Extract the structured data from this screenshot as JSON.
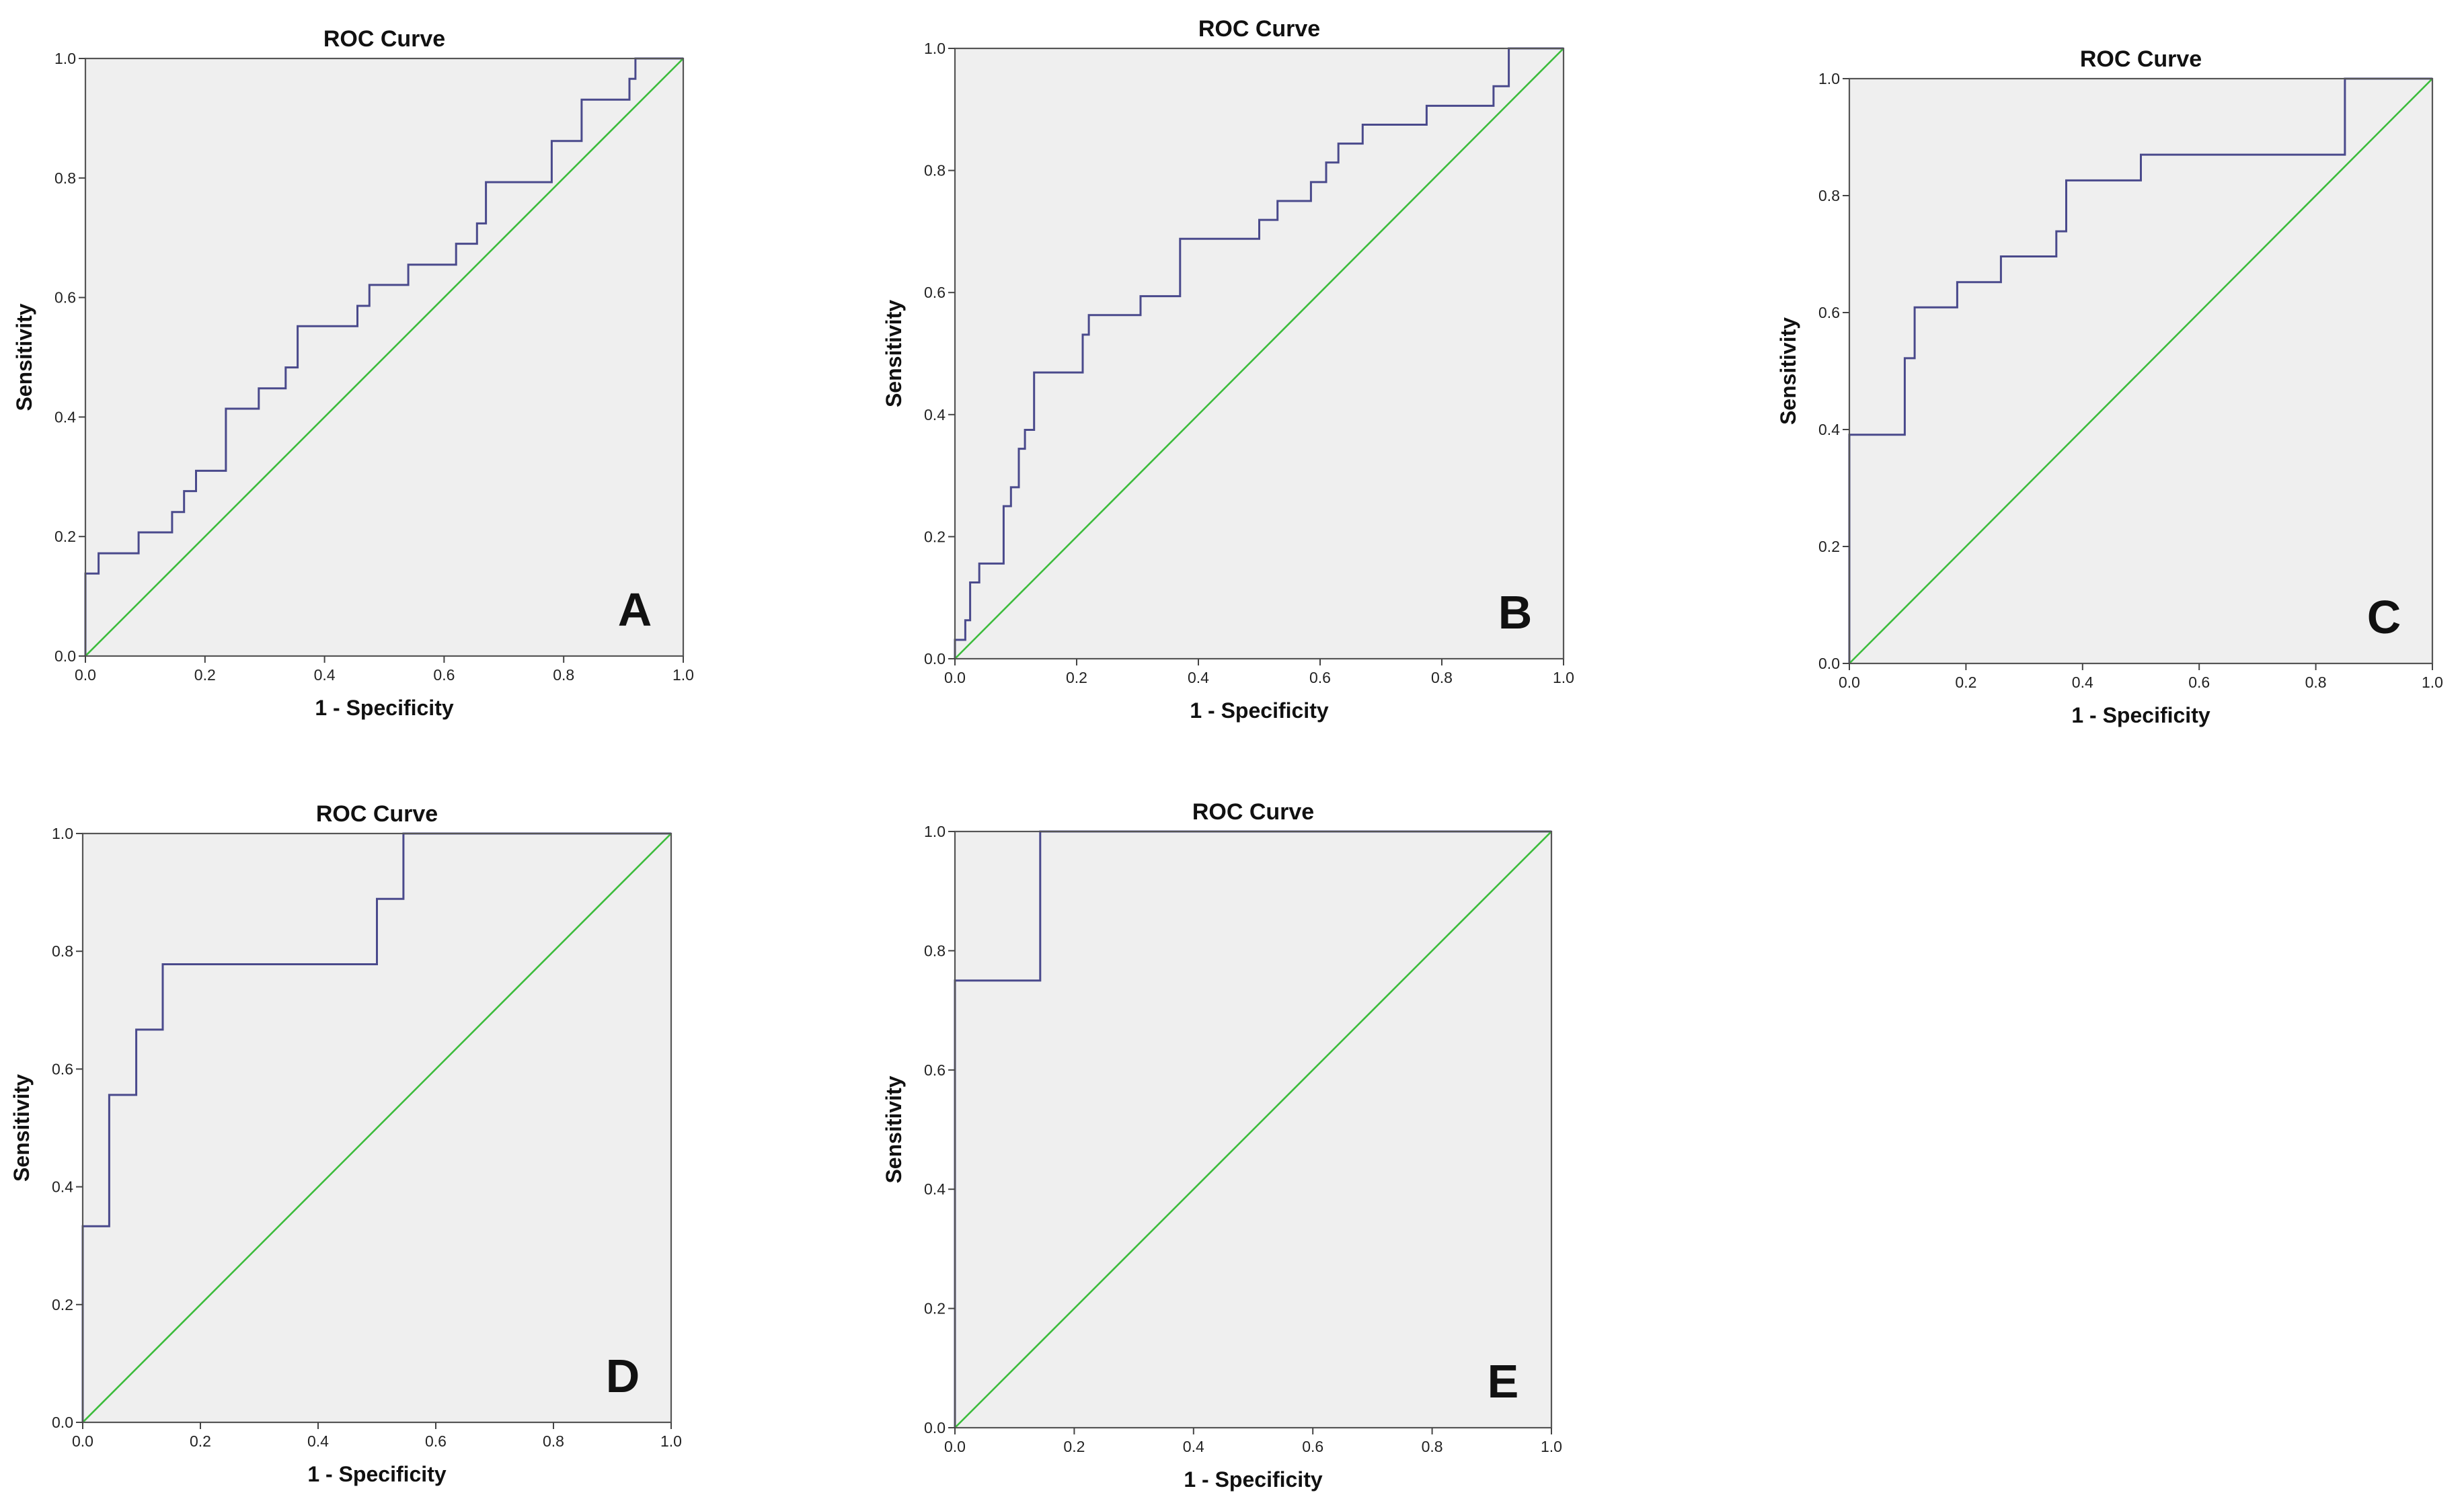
{
  "chart_data": [
    {
      "type": "line",
      "panel": "A",
      "title": "ROC Curve",
      "xlabel": "1 - Specificity",
      "ylabel": "Sensitivity",
      "xlim": [
        0,
        1
      ],
      "ylim": [
        0,
        1
      ],
      "ticks": [
        "0.0",
        "0.2",
        "0.4",
        "0.6",
        "0.8",
        "1.0"
      ],
      "series": [
        {
          "name": "ROC",
          "color": "#4a4a8c",
          "points": [
            [
              0,
              0
            ],
            [
              0,
              0.138
            ],
            [
              0.022,
              0.138
            ],
            [
              0.022,
              0.172
            ],
            [
              0.089,
              0.172
            ],
            [
              0.089,
              0.207
            ],
            [
              0.145,
              0.207
            ],
            [
              0.145,
              0.241
            ],
            [
              0.165,
              0.241
            ],
            [
              0.165,
              0.276
            ],
            [
              0.185,
              0.276
            ],
            [
              0.185,
              0.31
            ],
            [
              0.235,
              0.31
            ],
            [
              0.235,
              0.414
            ],
            [
              0.29,
              0.414
            ],
            [
              0.29,
              0.448
            ],
            [
              0.335,
              0.448
            ],
            [
              0.335,
              0.483
            ],
            [
              0.355,
              0.483
            ],
            [
              0.355,
              0.552
            ],
            [
              0.455,
              0.552
            ],
            [
              0.455,
              0.586
            ],
            [
              0.475,
              0.586
            ],
            [
              0.475,
              0.621
            ],
            [
              0.54,
              0.621
            ],
            [
              0.54,
              0.655
            ],
            [
              0.62,
              0.655
            ],
            [
              0.62,
              0.69
            ],
            [
              0.655,
              0.69
            ],
            [
              0.655,
              0.724
            ],
            [
              0.67,
              0.724
            ],
            [
              0.67,
              0.793
            ],
            [
              0.78,
              0.793
            ],
            [
              0.78,
              0.862
            ],
            [
              0.83,
              0.862
            ],
            [
              0.83,
              0.931
            ],
            [
              0.91,
              0.931
            ],
            [
              0.91,
              0.966
            ],
            [
              0.92,
              0.966
            ],
            [
              0.92,
              1
            ],
            [
              1,
              1
            ]
          ]
        },
        {
          "name": "Reference line",
          "color": "#3cbc3c",
          "points": [
            [
              0,
              0
            ],
            [
              1,
              1
            ]
          ]
        }
      ]
    },
    {
      "type": "line",
      "panel": "B",
      "title": "ROC Curve",
      "xlabel": "1 - Specificity",
      "ylabel": "Sensitivity",
      "xlim": [
        0,
        1
      ],
      "ylim": [
        0,
        1
      ],
      "ticks": [
        "0.0",
        "0.2",
        "0.4",
        "0.6",
        "0.8",
        "1.0"
      ],
      "series": [
        {
          "name": "ROC",
          "color": "#4a4a8c",
          "points": [
            [
              0,
              0
            ],
            [
              0,
              0.031
            ],
            [
              0.017,
              0.031
            ],
            [
              0.017,
              0.063
            ],
            [
              0.025,
              0.063
            ],
            [
              0.025,
              0.125
            ],
            [
              0.04,
              0.125
            ],
            [
              0.04,
              0.156
            ],
            [
              0.08,
              0.156
            ],
            [
              0.08,
              0.25
            ],
            [
              0.092,
              0.25
            ],
            [
              0.092,
              0.281
            ],
            [
              0.105,
              0.281
            ],
            [
              0.105,
              0.344
            ],
            [
              0.115,
              0.344
            ],
            [
              0.115,
              0.375
            ],
            [
              0.13,
              0.375
            ],
            [
              0.13,
              0.469
            ],
            [
              0.21,
              0.469
            ],
            [
              0.21,
              0.531
            ],
            [
              0.22,
              0.531
            ],
            [
              0.22,
              0.563
            ],
            [
              0.305,
              0.563
            ],
            [
              0.305,
              0.594
            ],
            [
              0.37,
              0.594
            ],
            [
              0.37,
              0.688
            ],
            [
              0.5,
              0.688
            ],
            [
              0.5,
              0.719
            ],
            [
              0.53,
              0.719
            ],
            [
              0.53,
              0.75
            ],
            [
              0.585,
              0.75
            ],
            [
              0.585,
              0.781
            ],
            [
              0.61,
              0.781
            ],
            [
              0.61,
              0.813
            ],
            [
              0.63,
              0.813
            ],
            [
              0.63,
              0.844
            ],
            [
              0.67,
              0.844
            ],
            [
              0.67,
              0.875
            ],
            [
              0.775,
              0.875
            ],
            [
              0.775,
              0.906
            ],
            [
              0.885,
              0.906
            ],
            [
              0.885,
              0.938
            ],
            [
              0.91,
              0.938
            ],
            [
              0.91,
              1
            ],
            [
              1,
              1
            ]
          ]
        },
        {
          "name": "Reference line",
          "color": "#3cbc3c",
          "points": [
            [
              0,
              0
            ],
            [
              1,
              1
            ]
          ]
        }
      ]
    },
    {
      "type": "line",
      "panel": "C",
      "title": "ROC Curve",
      "xlabel": "1 - Specificity",
      "ylabel": "Sensitivity",
      "xlim": [
        0,
        1
      ],
      "ylim": [
        0,
        1
      ],
      "ticks": [
        "0.0",
        "0.2",
        "0.4",
        "0.6",
        "0.8",
        "1.0"
      ],
      "series": [
        {
          "name": "ROC",
          "color": "#4a4a8c",
          "points": [
            [
              0,
              0
            ],
            [
              0,
              0.391
            ],
            [
              0.095,
              0.391
            ],
            [
              0.095,
              0.522
            ],
            [
              0.112,
              0.522
            ],
            [
              0.112,
              0.609
            ],
            [
              0.185,
              0.609
            ],
            [
              0.185,
              0.652
            ],
            [
              0.26,
              0.652
            ],
            [
              0.26,
              0.696
            ],
            [
              0.355,
              0.696
            ],
            [
              0.355,
              0.739
            ],
            [
              0.372,
              0.739
            ],
            [
              0.372,
              0.826
            ],
            [
              0.5,
              0.826
            ],
            [
              0.5,
              0.87
            ],
            [
              0.85,
              0.87
            ],
            [
              0.85,
              1
            ],
            [
              1,
              1
            ]
          ]
        },
        {
          "name": "Reference line",
          "color": "#3cbc3c",
          "points": [
            [
              0,
              0
            ],
            [
              1,
              1
            ]
          ]
        }
      ]
    },
    {
      "type": "line",
      "panel": "D",
      "title": "ROC Curve",
      "xlabel": "1 - Specificity",
      "ylabel": "Sensitivity",
      "xlim": [
        0,
        1
      ],
      "ylim": [
        0,
        1
      ],
      "ticks": [
        "0.0",
        "0.2",
        "0.4",
        "0.6",
        "0.8",
        "1.0"
      ],
      "series": [
        {
          "name": "ROC",
          "color": "#4a4a8c",
          "points": [
            [
              0,
              0
            ],
            [
              0,
              0.333
            ],
            [
              0.045,
              0.333
            ],
            [
              0.045,
              0.556
            ],
            [
              0.091,
              0.556
            ],
            [
              0.091,
              0.667
            ],
            [
              0.136,
              0.667
            ],
            [
              0.136,
              0.778
            ],
            [
              0.5,
              0.778
            ],
            [
              0.5,
              0.889
            ],
            [
              0.545,
              0.889
            ],
            [
              0.545,
              1
            ],
            [
              1,
              1
            ]
          ]
        },
        {
          "name": "Reference line",
          "color": "#3cbc3c",
          "points": [
            [
              0,
              0
            ],
            [
              1,
              1
            ]
          ]
        }
      ]
    },
    {
      "type": "line",
      "panel": "E",
      "title": "ROC Curve",
      "xlabel": "1 - Specificity",
      "ylabel": "Sensitivity",
      "xlim": [
        0,
        1
      ],
      "ylim": [
        0,
        1
      ],
      "ticks": [
        "0.0",
        "0.2",
        "0.4",
        "0.6",
        "0.8",
        "1.0"
      ],
      "series": [
        {
          "name": "ROC",
          "color": "#4a4a8c",
          "points": [
            [
              0,
              0
            ],
            [
              0,
              0.75
            ],
            [
              0.143,
              0.75
            ],
            [
              0.143,
              1
            ],
            [
              1,
              1
            ]
          ]
        },
        {
          "name": "Reference line",
          "color": "#3cbc3c",
          "points": [
            [
              0,
              0
            ],
            [
              1,
              1
            ]
          ]
        }
      ]
    }
  ]
}
